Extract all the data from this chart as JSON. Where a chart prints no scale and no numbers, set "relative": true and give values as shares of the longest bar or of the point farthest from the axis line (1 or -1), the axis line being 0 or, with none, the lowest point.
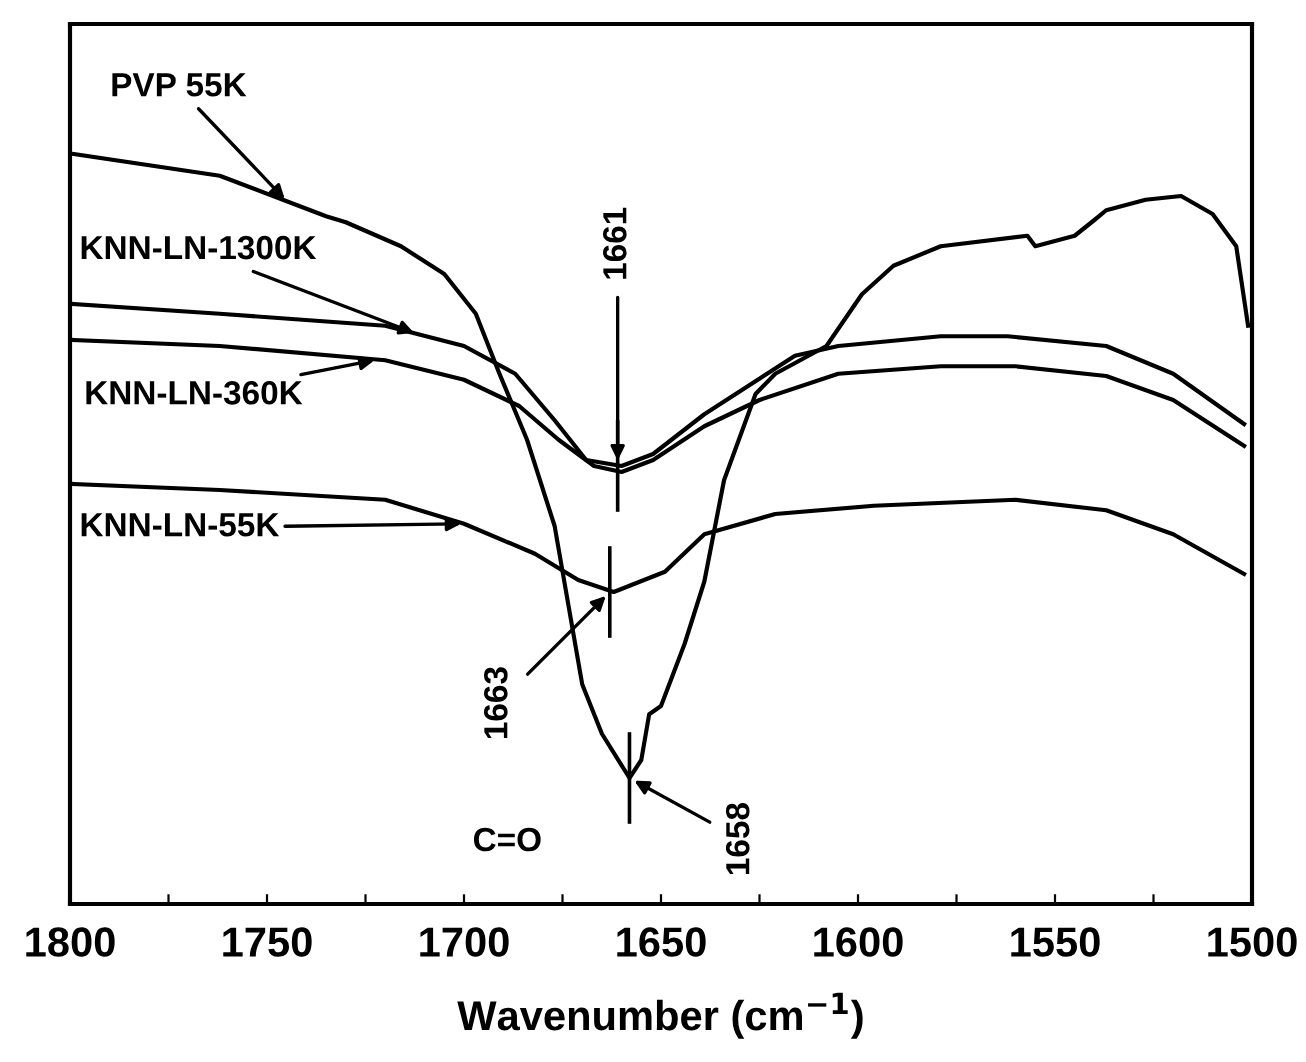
{
  "chart_data": {
    "type": "line",
    "relative": true,
    "xlabel": "Wavenumber (cm$^{−1}$)",
    "xlim": [
      1800,
      1500
    ],
    "xticks": [
      1800,
      {
        "value": 1775,
        "label": null
      },
      1750,
      {
        "value": 1725,
        "label": null
      },
      1700,
      {
        "value": 1675,
        "label": null
      },
      1650,
      {
        "value": 1625,
        "label": null
      },
      1600,
      {
        "value": 1575,
        "label": null
      },
      1550,
      {
        "value": 1525,
        "label": null
      },
      1500
    ],
    "tick_labels": "x",
    "grid": false,
    "marker": "none",
    "line_style": "solid",
    "series": [
      {
        "name": "PVP 55K",
        "color": "#000000",
        "x": [
          1799,
          1762,
          1735,
          1730,
          1716,
          1705,
          1697,
          1691,
          1684,
          1677,
          1670,
          1665,
          1658,
          1655,
          1653,
          1650,
          1644,
          1639,
          1634,
          1626,
          1621,
          1608,
          1599,
          1591,
          1579,
          1557,
          1555,
          1545,
          1540,
          1537,
          1527,
          1518,
          1510,
          1504,
          1501
        ],
        "values": [
          1.0,
          0.971,
          0.917,
          0.909,
          0.877,
          0.84,
          0.787,
          0.707,
          0.619,
          0.504,
          0.293,
          0.227,
          0.168,
          0.192,
          0.253,
          0.264,
          0.347,
          0.43,
          0.565,
          0.68,
          0.707,
          0.744,
          0.813,
          0.851,
          0.877,
          0.891,
          0.877,
          0.891,
          0.912,
          0.925,
          0.939,
          0.944,
          0.92,
          0.877,
          0.771
        ]
      },
      {
        "name": "KNN-LN-1300K",
        "color": "#000000",
        "x": [
          1799,
          1762,
          1720,
          1700,
          1687,
          1677,
          1669,
          1660,
          1652,
          1639,
          1616,
          1605,
          1579,
          1562,
          1537,
          1520,
          1502
        ],
        "values": [
          0.8,
          0.787,
          0.771,
          0.744,
          0.707,
          0.645,
          0.592,
          0.584,
          0.6,
          0.653,
          0.731,
          0.744,
          0.757,
          0.757,
          0.744,
          0.707,
          0.64
        ]
      },
      {
        "name": "KNN-LN-360K",
        "color": "#000000",
        "x": [
          1799,
          1762,
          1720,
          1700,
          1686,
          1676,
          1667,
          1660,
          1652,
          1639,
          1625,
          1605,
          1579,
          1560,
          1537,
          1520,
          1502
        ],
        "values": [
          0.752,
          0.744,
          0.725,
          0.699,
          0.664,
          0.619,
          0.584,
          0.576,
          0.592,
          0.637,
          0.672,
          0.707,
          0.717,
          0.717,
          0.704,
          0.672,
          0.611
        ]
      },
      {
        "name": "KNN-LN-55K",
        "color": "#000000",
        "x": [
          1799,
          1762,
          1720,
          1700,
          1682,
          1671,
          1662,
          1649,
          1639,
          1621,
          1596,
          1560,
          1537,
          1520,
          1502
        ],
        "values": [
          0.56,
          0.552,
          0.539,
          0.507,
          0.467,
          0.432,
          0.416,
          0.443,
          0.493,
          0.52,
          0.531,
          0.539,
          0.525,
          0.493,
          0.44
        ]
      }
    ],
    "annotations": [
      {
        "text": "1661",
        "x": 1661,
        "y": 0.584
      },
      {
        "text": "1663",
        "x": 1663,
        "y": 0.416
      },
      {
        "text": "1658",
        "x": 1658,
        "y": 0.168
      },
      "C=O"
    ]
  }
}
